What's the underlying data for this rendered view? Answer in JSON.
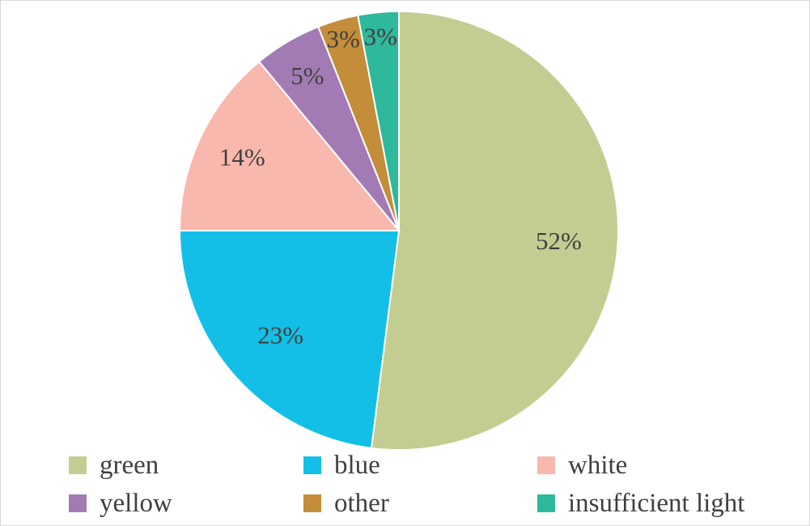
{
  "chart_data": {
    "type": "pie",
    "title": "",
    "slices": [
      {
        "label": "green",
        "value": 52,
        "display": "52%",
        "color": "#c3cd91"
      },
      {
        "label": "blue",
        "value": 23,
        "display": "23%",
        "color": "#13bfe7"
      },
      {
        "label": "white",
        "value": 14,
        "display": "14%",
        "color": "#f9b8ad"
      },
      {
        "label": "yellow",
        "value": 5,
        "display": "5%",
        "color": "#a27bb5"
      },
      {
        "label": "other",
        "value": 3,
        "display": "3%",
        "color": "#c38d3a"
      },
      {
        "label": "insufficient light",
        "value": 3,
        "display": "3%",
        "color": "#2eb89c"
      }
    ],
    "start_angle_deg": 0,
    "direction": "clockwise",
    "legend_position": "bottom",
    "slice_border_color": "#ffffff"
  }
}
